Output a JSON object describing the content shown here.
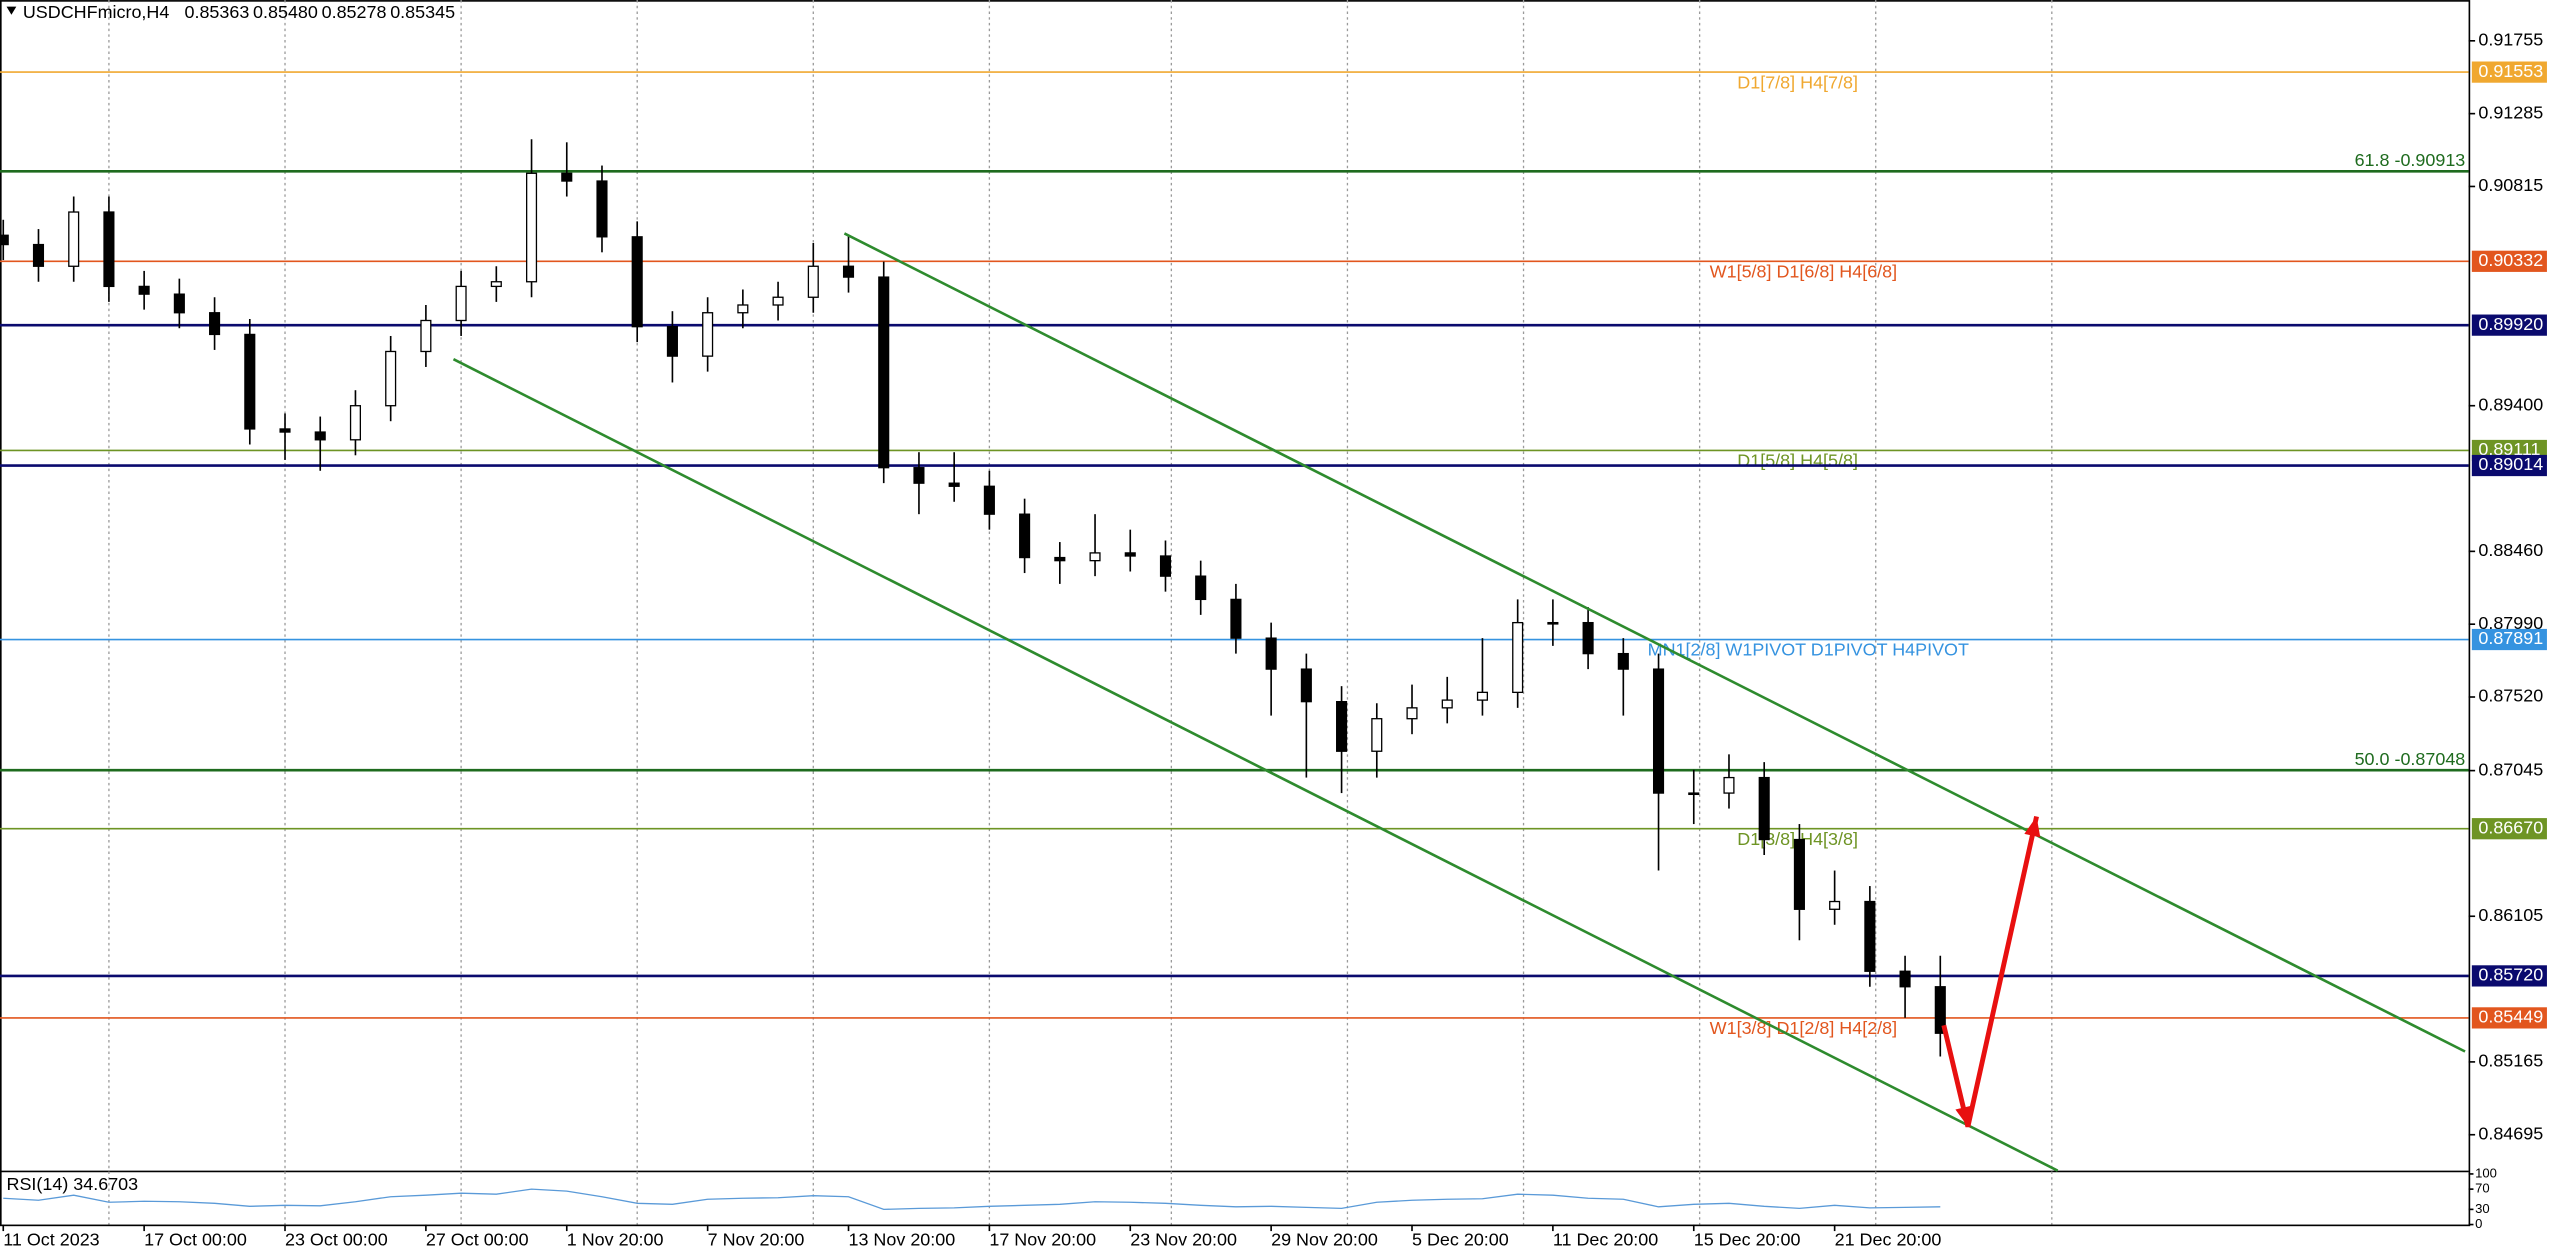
{
  "chart_data": {
    "type": "candlestick",
    "symbol": "USDCHFmicro,H4",
    "ohlc_text": [
      "0.85363",
      "0.85480",
      "0.85278",
      "0.85345"
    ],
    "x": [
      0,
      6,
      12,
      18,
      24,
      30,
      36,
      42,
      48,
      54,
      60,
      66,
      72,
      78,
      84,
      90,
      96,
      102,
      108,
      114,
      120,
      126,
      132,
      138,
      144,
      150,
      156,
      162,
      168,
      174,
      180,
      186,
      192,
      198,
      204,
      210,
      216,
      222,
      228,
      234,
      240,
      246,
      252,
      258,
      264,
      270,
      276,
      282,
      288,
      294,
      300,
      306,
      312,
      318,
      324,
      330
    ],
    "open": [
      0.905,
      0.9044,
      0.903,
      0.9065,
      0.9017,
      0.9012,
      0.9,
      0.8986,
      0.8925,
      0.8923,
      0.8918,
      0.894,
      0.8975,
      0.8995,
      0.9017,
      0.902,
      0.909,
      0.9085,
      0.9049,
      0.8991,
      0.8972,
      0.9,
      0.9005,
      0.901,
      0.903,
      0.9023,
      0.89,
      0.889,
      0.8888,
      0.887,
      0.8842,
      0.884,
      0.8845,
      0.8843,
      0.883,
      0.8815,
      0.879,
      0.877,
      0.8749,
      0.8717,
      0.8738,
      0.8745,
      0.875,
      0.8755,
      0.88,
      0.88,
      0.878,
      0.877,
      0.869,
      0.869,
      0.87,
      0.866,
      0.8615,
      0.862,
      0.8575,
      0.8565
    ],
    "high": [
      0.906,
      0.9054,
      0.9075,
      0.9075,
      0.9027,
      0.9022,
      0.901,
      0.8996,
      0.8935,
      0.8933,
      0.895,
      0.8985,
      0.9005,
      0.9027,
      0.903,
      0.9112,
      0.911,
      0.9095,
      0.9059,
      0.9001,
      0.901,
      0.9015,
      0.902,
      0.9045,
      0.905,
      0.9033,
      0.891,
      0.891,
      0.8898,
      0.888,
      0.8852,
      0.887,
      0.886,
      0.8853,
      0.884,
      0.8825,
      0.88,
      0.878,
      0.8759,
      0.8748,
      0.876,
      0.8765,
      0.879,
      0.8815,
      0.8815,
      0.881,
      0.879,
      0.878,
      0.8705,
      0.8715,
      0.871,
      0.867,
      0.864,
      0.863,
      0.8585,
      0.8585
    ],
    "low": [
      0.9034,
      0.902,
      0.902,
      0.9007,
      0.9002,
      0.899,
      0.8976,
      0.8915,
      0.8905,
      0.8898,
      0.8908,
      0.893,
      0.8965,
      0.8985,
      0.9007,
      0.901,
      0.9075,
      0.9039,
      0.8981,
      0.8955,
      0.8962,
      0.899,
      0.8995,
      0.9,
      0.9013,
      0.889,
      0.887,
      0.8878,
      0.886,
      0.8832,
      0.8825,
      0.883,
      0.8833,
      0.882,
      0.8805,
      0.878,
      0.874,
      0.87,
      0.869,
      0.87,
      0.8728,
      0.8735,
      0.874,
      0.8745,
      0.8785,
      0.877,
      0.874,
      0.864,
      0.867,
      0.868,
      0.865,
      0.8595,
      0.8605,
      0.8565,
      0.8545,
      0.852
    ],
    "close": [
      0.9044,
      0.903,
      0.9065,
      0.9017,
      0.9012,
      0.9,
      0.8986,
      0.8925,
      0.8923,
      0.8918,
      0.894,
      0.8975,
      0.8995,
      0.9017,
      0.902,
      0.909,
      0.9085,
      0.9049,
      0.8991,
      0.8972,
      0.9,
      0.9005,
      0.901,
      0.903,
      0.9023,
      0.89,
      0.889,
      0.8888,
      0.887,
      0.8842,
      0.884,
      0.8845,
      0.8843,
      0.883,
      0.8815,
      0.879,
      0.877,
      0.8749,
      0.8717,
      0.8738,
      0.8745,
      0.875,
      0.8755,
      0.88,
      0.88,
      0.878,
      0.877,
      0.869,
      0.869,
      0.87,
      0.866,
      0.8615,
      0.862,
      0.8575,
      0.8565,
      0.8535
    ],
    "xlim": [
      0,
      420
    ],
    "ylim": [
      0.84463,
      0.92018
    ],
    "xticks": [
      {
        "value": 0,
        "label": "11 Oct 2023"
      },
      {
        "value": 24,
        "label": "17 Oct 00:00"
      },
      {
        "value": 48,
        "label": "23 Oct 00:00"
      },
      {
        "value": 72,
        "label": "27 Oct 00:00"
      },
      {
        "value": 96,
        "label": "1 Nov 20:00"
      },
      {
        "value": 120,
        "label": "7 Nov 20:00"
      },
      {
        "value": 144,
        "label": "13 Nov 20:00"
      },
      {
        "value": 168,
        "label": "17 Nov 20:00"
      },
      {
        "value": 192,
        "label": "23 Nov 20:00"
      },
      {
        "value": 216,
        "label": "29 Nov 20:00"
      },
      {
        "value": 240,
        "label": "5 Dec 20:00"
      },
      {
        "value": 264,
        "label": "11 Dec 20:00"
      },
      {
        "value": 288,
        "label": "15 Dec 20:00"
      },
      {
        "value": 312,
        "label": "21 Dec 20:00"
      }
    ],
    "xgrid": [
      18,
      48,
      78,
      108,
      138,
      168,
      199,
      229,
      259,
      289,
      319,
      349
    ],
    "yticks": [
      0.91755,
      0.91285,
      0.90815,
      {
        "value": 0.894,
        "label": "0.89400"
      },
      {
        "value": 0.8846,
        "label": "0.88460"
      },
      {
        "value": 0.8799,
        "label": "0.87990"
      },
      {
        "value": 0.8752,
        "label": "0.87520"
      },
      0.87045,
      0.86105,
      0.85165,
      0.84695
    ],
    "grid": true,
    "levels": [
      {
        "value": 0.91553,
        "color": "#f0a830",
        "text": "D1[7/8] H4[7/8]",
        "value_label": "0.91553"
      },
      {
        "value": 0.90913,
        "color": "#1e6b1e",
        "text": "61.8 -0.90913"
      },
      {
        "value": 0.90332,
        "color": "#e2561e",
        "text": "W1[5/8] D1[6/8] H4[6/8]",
        "value_label": "0.90332"
      },
      {
        "value": 0.8992,
        "color": "#0a0a6e",
        "value_label": "0.89920"
      },
      {
        "value": 0.89111,
        "color": "#6e9424",
        "text": "D1[5/8] H4[5/8]",
        "value_label": "0.89111"
      },
      {
        "value": 0.89014,
        "color": "#0a0a6e",
        "value_label": "0.89014"
      },
      {
        "value": 0.87891,
        "color": "#3593e0",
        "text": "MN1[2/8] W1PIVOT D1PIVOT H4PIVOT",
        "value_label": "0.87891"
      },
      {
        "value": 0.87048,
        "color": "#1e6b1e",
        "text": "50.0 -0.87048"
      },
      {
        "value": 0.8667,
        "color": "#6e9424",
        "text": "D1[3/8] H4[3/8]",
        "value_label": "0.86670"
      },
      {
        "value": 0.8572,
        "color": "#0a0a6e",
        "value_label": "0.85720"
      },
      {
        "value": 0.85449,
        "color": "#e2561e",
        "text": "W1[3/8] D1[2/8] H4[2/8]",
        "value_label": "0.85449"
      }
    ],
    "trendlines": [
      {
        "color": "#2e8b2e",
        "x": [
          143.3,
          419.4
        ],
        "y": [
          0.90512,
          0.85232
        ]
      },
      {
        "color": "#2e8b2e",
        "x": [
          76.7,
          350
        ],
        "y": [
          0.897,
          0.84463
        ]
      }
    ],
    "arrow": {
      "color": "#e81010",
      "x": [
        330.6,
        334.7,
        346.4
      ],
      "y": [
        0.85401,
        0.84747,
        0.86749
      ]
    },
    "rsi": {
      "title": "RSI(14) 34.6703",
      "color": "#5a9ad8",
      "ylim": [
        0,
        100
      ],
      "yticks": [
        100,
        70,
        30,
        0
      ],
      "values": [
        52,
        48,
        58,
        44,
        46,
        45,
        42,
        36,
        38,
        37,
        45,
        55,
        58,
        62,
        60,
        70,
        66,
        55,
        42,
        40,
        50,
        52,
        53,
        57,
        55,
        30,
        32,
        33,
        36,
        38,
        40,
        45,
        44,
        42,
        38,
        35,
        36,
        34,
        32,
        44,
        48,
        50,
        51,
        60,
        58,
        52,
        50,
        35,
        40,
        42,
        36,
        32,
        38,
        33,
        34,
        35
      ]
    }
  }
}
